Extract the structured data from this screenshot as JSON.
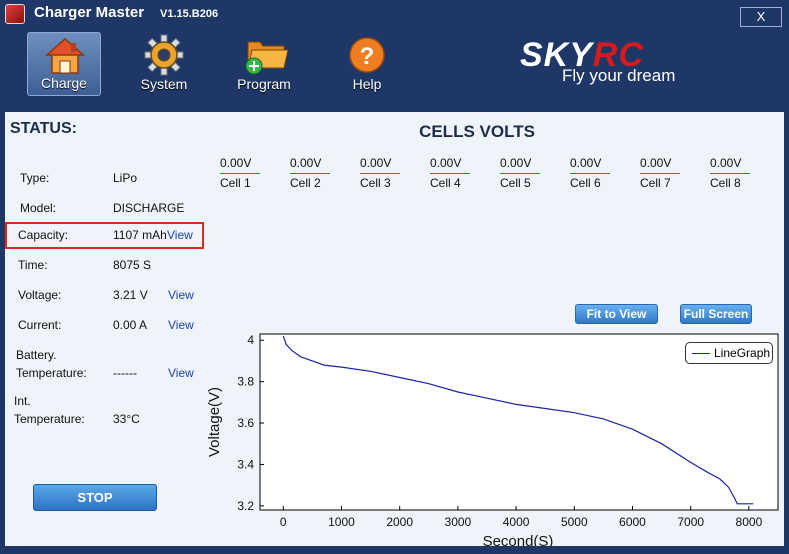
{
  "titlebar": {
    "title": "Charger Master",
    "version": "V1.15.B206",
    "close_label": "X"
  },
  "toolbar": [
    {
      "label": "Charge",
      "icon": "house-icon"
    },
    {
      "label": "System",
      "icon": "gear-icon"
    },
    {
      "label": "Program",
      "icon": "folder-add-icon"
    },
    {
      "label": "Help",
      "icon": "help-icon"
    }
  ],
  "brand": {
    "logo_sky": "SKY",
    "logo_rc": "RC",
    "slogan": "Fly your dream",
    "accent": "#d71920"
  },
  "status": {
    "title": "STATUS:",
    "rows": [
      {
        "label": "Type:",
        "value": "LiPo"
      },
      {
        "label": "Model:",
        "value": "DISCHARGE"
      },
      {
        "label": "Capacity:",
        "value": "1107 mAh",
        "link": "View"
      },
      {
        "label": "Time:",
        "value": "8075 S"
      },
      {
        "label": "Voltage:",
        "value": "3.21 V",
        "link": "View"
      },
      {
        "label": "Current:",
        "value": "0.00 A",
        "link": "View"
      },
      {
        "label": "Battery.",
        "label2": "Temperature:",
        "value": "------",
        "link": "View"
      },
      {
        "label": "Int.",
        "label2": "Temperature:",
        "value": "33°C"
      }
    ],
    "stop_label": "STOP"
  },
  "cells": {
    "title": "CELLS VOLTS",
    "items": [
      {
        "value": "0.00V",
        "name": "Cell 1"
      },
      {
        "value": "0.00V",
        "name": "Cell 2"
      },
      {
        "value": "0.00V",
        "name": "Cell 3"
      },
      {
        "value": "0.00V",
        "name": "Cell 4"
      },
      {
        "value": "0.00V",
        "name": "Cell 5"
      },
      {
        "value": "0.00V",
        "name": "Cell 6"
      },
      {
        "value": "0.00V",
        "name": "Cell 7"
      },
      {
        "value": "0.00V",
        "name": "Cell 8"
      }
    ]
  },
  "chart_buttons": {
    "fit": "Fit to View",
    "full": "Full Screen"
  },
  "chart_data": {
    "type": "line",
    "xlabel": "Second(S)",
    "ylabel": "Voltage(V)",
    "xlim": [
      -400,
      8500
    ],
    "ylim": [
      3.18,
      4.03
    ],
    "xticks": [
      0,
      1000,
      2000,
      3000,
      4000,
      5000,
      6000,
      7000,
      8000
    ],
    "yticks": [
      3.2,
      3.4,
      3.6,
      3.8,
      4
    ],
    "ytick_labels": [
      "3.2",
      "3.4",
      "3.6",
      "3.8",
      "4"
    ],
    "legend": "top-right",
    "series": [
      {
        "name": "LineGraph",
        "color": "#1a23a8",
        "x": [
          0,
          50,
          150,
          300,
          500,
          700,
          1000,
          1500,
          2000,
          2500,
          3000,
          3500,
          4000,
          4500,
          5000,
          5500,
          6000,
          6500,
          7000,
          7300,
          7500,
          7650,
          7750,
          7800,
          7900,
          8075
        ],
        "y": [
          4.02,
          3.98,
          3.95,
          3.92,
          3.9,
          3.88,
          3.87,
          3.85,
          3.82,
          3.79,
          3.75,
          3.72,
          3.69,
          3.67,
          3.65,
          3.62,
          3.57,
          3.5,
          3.41,
          3.36,
          3.33,
          3.29,
          3.24,
          3.21,
          3.21,
          3.21
        ]
      }
    ]
  }
}
